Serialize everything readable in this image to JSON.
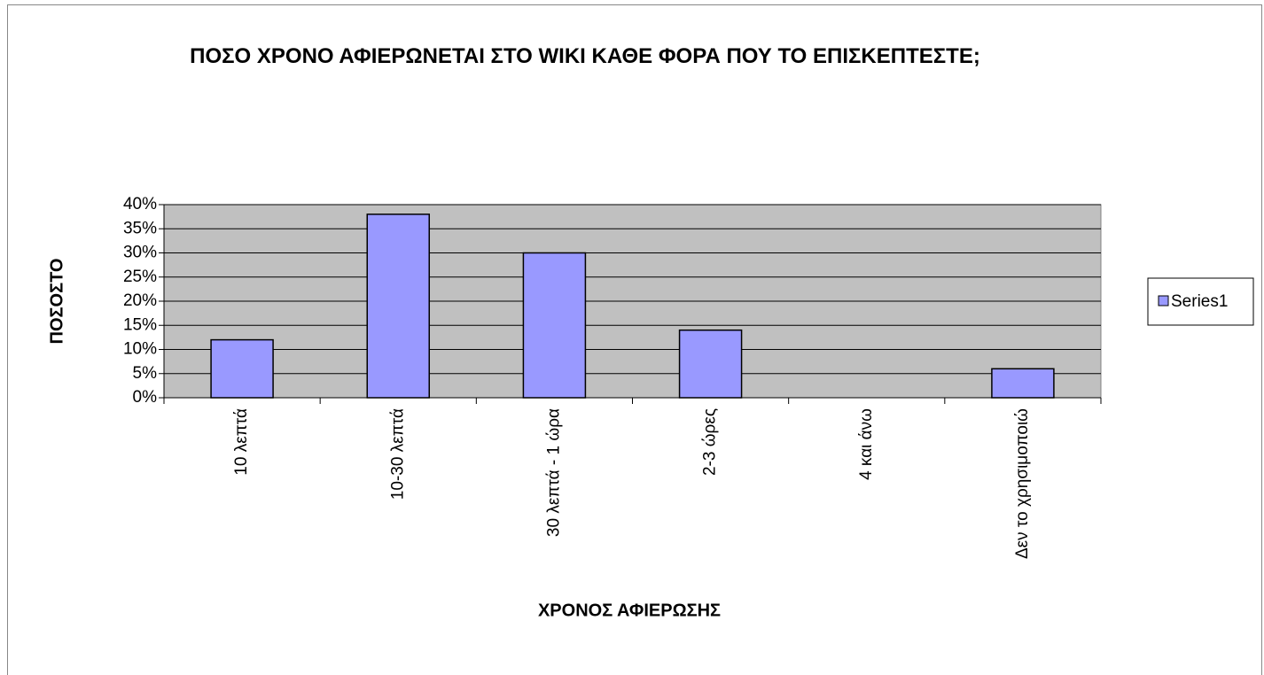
{
  "chart_data": {
    "type": "bar",
    "title": "ΠΟΣΟ ΧΡΟΝΟ ΑΦΙΕΡΩΝΕΤΑΙ ΣΤΟ WIKI ΚΑΘΕ ΦΟΡΑ ΠΟΥ ΤΟ ΕΠΙΣΚΕΠΤΕΣΤΕ;",
    "x_label": "ΧΡΟΝΟΣ ΑΦΙΕΡΩΣΗΣ",
    "y_label": "ΠΟΣΟΣΤΟ",
    "categories": [
      "10 λεπτά",
      "10-30 λεπτά",
      "30 λεπτά - 1 ώρα",
      "2-3 ώρες",
      "4 και άνω",
      "Δεν το χρησιμοποιώ"
    ],
    "series": [
      {
        "name": "Series1",
        "color": "#9999ff",
        "values": [
          12,
          38,
          30,
          14,
          0,
          6
        ]
      }
    ],
    "ylim": [
      0,
      40
    ],
    "yticks": [
      {
        "value": 0,
        "label": "0%"
      },
      {
        "value": 5,
        "label": "5%"
      },
      {
        "value": 10,
        "label": "10%"
      },
      {
        "value": 15,
        "label": "15%"
      },
      {
        "value": 20,
        "label": "20%"
      },
      {
        "value": 25,
        "label": "25%"
      },
      {
        "value": 30,
        "label": "30%"
      },
      {
        "value": 35,
        "label": "35%"
      },
      {
        "value": 40,
        "label": "40%"
      }
    ],
    "grid": true,
    "legend": "right"
  }
}
